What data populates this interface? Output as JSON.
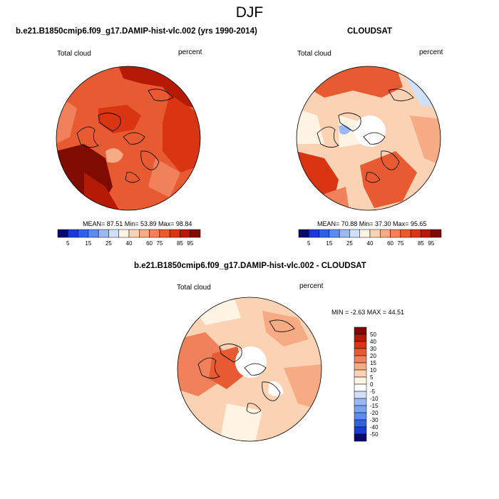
{
  "main_title": "DJF",
  "panels": [
    {
      "title": "b.e21.B1850cmip6.f09_g17.DAMIP-hist-vlc.002 (yrs 1990-2014)",
      "left_label": "Total cloud",
      "right_label": "percent",
      "stats": "MEAN=  87.51  Min=  53.89  Max=  98.84"
    },
    {
      "title": "CLOUDSAT",
      "left_label": "Total cloud",
      "right_label": "percent",
      "stats": "MEAN=  70.88  Min=  37.30  Max=  95.65"
    },
    {
      "title": "b.e21.B1850cmip6.f09_g17.DAMIP-hist-vlc.002 - CLOUDSAT",
      "left_label": "Total cloud",
      "right_label": "percent",
      "stats": "MIN =  -2.63  MAX =  44.51"
    }
  ],
  "colors": {
    "abs_scale": [
      "#08086b",
      "#1a3ad6",
      "#2f63e6",
      "#5d8cef",
      "#9ab8f4",
      "#cfe0fa",
      "#fff3e3",
      "#fcd2b4",
      "#f7ab84",
      "#f0815a",
      "#e85b32",
      "#d93512",
      "#b41a05",
      "#7e0c02"
    ],
    "diff_scale": [
      "#08086b",
      "#1a3ad6",
      "#2f63e6",
      "#5d8cef",
      "#7aa3f2",
      "#9ab8f4",
      "#cfe0fa",
      "#ffffff",
      "#fff3e3",
      "#fcd2b4",
      "#f7ab84",
      "#f0815a",
      "#e85b32",
      "#d93512",
      "#b41a05",
      "#7e0c02"
    ]
  },
  "chart_data": [
    {
      "type": "heatmap",
      "projection": "north polar stereographic",
      "title": "b.e21.B1850cmip6.f09_g17.DAMIP-hist-vlc.002 (yrs 1990-2014)",
      "variable": "Total cloud",
      "units": "percent",
      "mean": 87.51,
      "min": 53.89,
      "max": 98.84,
      "colorbar_levels": [
        5,
        10,
        15,
        20,
        25,
        30,
        40,
        50,
        60,
        70,
        75,
        80,
        85,
        90,
        95
      ]
    },
    {
      "type": "heatmap",
      "projection": "north polar stereographic",
      "title": "CLOUDSAT",
      "variable": "Total cloud",
      "units": "percent",
      "mean": 70.88,
      "min": 37.3,
      "max": 95.65,
      "colorbar_levels": [
        5,
        10,
        15,
        20,
        25,
        30,
        40,
        50,
        60,
        70,
        75,
        80,
        85,
        90,
        95
      ]
    },
    {
      "type": "heatmap",
      "projection": "north polar stereographic",
      "title": "b.e21.B1850cmip6.f09_g17.DAMIP-hist-vlc.002 - CLOUDSAT",
      "variable": "Total cloud",
      "units": "percent",
      "min": -2.63,
      "max": 44.51,
      "colorbar_levels": [
        -50,
        -40,
        -30,
        -20,
        -15,
        -10,
        -5,
        0,
        5,
        10,
        15,
        20,
        30,
        40,
        50
      ]
    }
  ],
  "colorbar_abs_ticks": [
    "5",
    "15",
    "25",
    "40",
    "60",
    "75",
    "85",
    "95"
  ],
  "colorbar_diff_ticks": [
    "50",
    "40",
    "30",
    "20",
    "15",
    "10",
    "5",
    "0",
    "-5",
    "-10",
    "-15",
    "-20",
    "-30",
    "-40",
    "-50"
  ]
}
